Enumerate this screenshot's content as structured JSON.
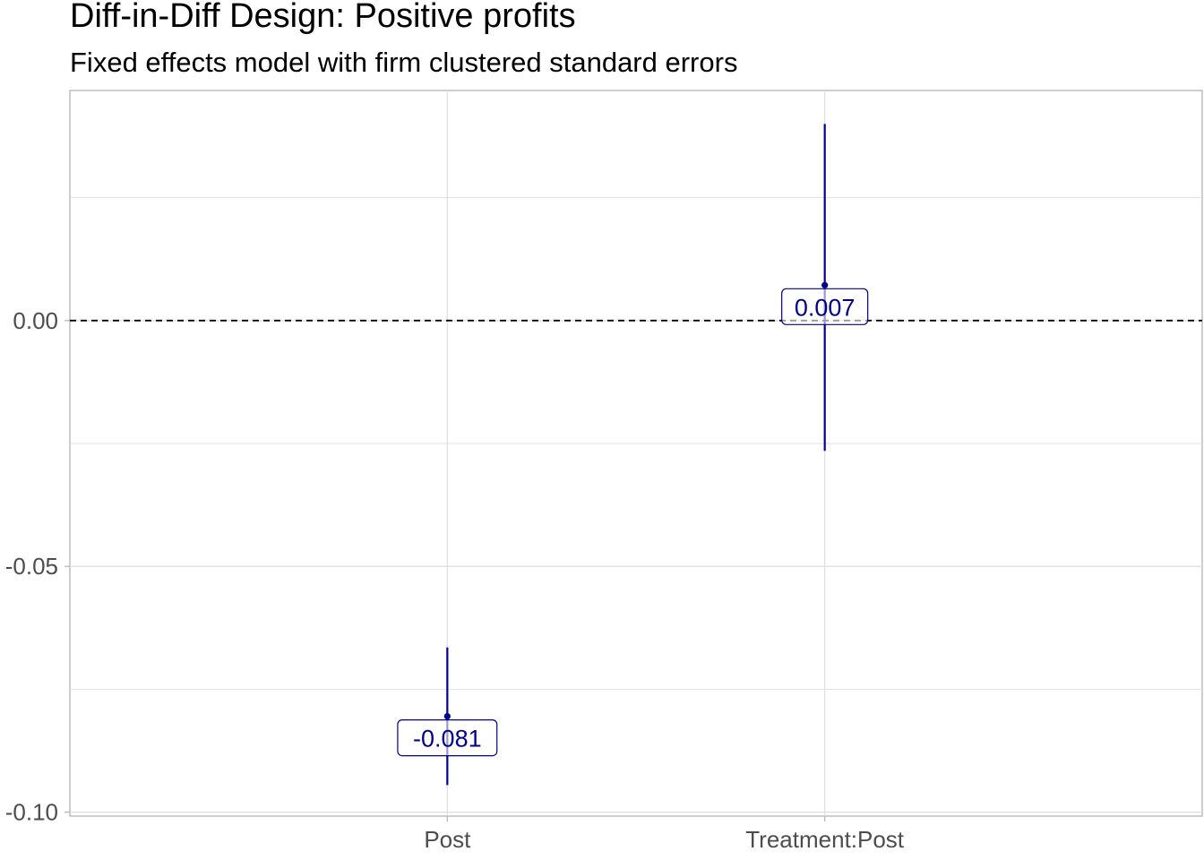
{
  "chart_data": {
    "type": "scatter",
    "title": "Diff-in-Diff Design: Positive profits",
    "subtitle": "Fixed effects model with firm clustered standard errors",
    "xlabel": "",
    "ylabel": "",
    "categories": [
      "Post",
      "Treatment:Post"
    ],
    "points": [
      {
        "term": "Post",
        "estimate": -0.0805,
        "conf_low": -0.0945,
        "conf_high": -0.0665,
        "label": "-0.081"
      },
      {
        "term": "Treatment:Post",
        "estimate": 0.0072,
        "conf_low": -0.0265,
        "conf_high": 0.04,
        "label": "0.007"
      }
    ],
    "yticks": [
      0.0,
      -0.05,
      -0.1
    ],
    "ytick_labels": [
      "0.00",
      "-0.05",
      "-0.10"
    ],
    "y_minor_breaks": [
      0.025,
      -0.025,
      -0.075
    ],
    "ylim": [
      -0.1008,
      0.0468
    ],
    "reference_line": {
      "y": 0,
      "style": "dashed",
      "color": "#000000"
    },
    "colors": {
      "series": "#00008b",
      "grid": "#dedede",
      "axis": "#b3b3b3",
      "tick_text": "#4d4d4d"
    },
    "grid": true,
    "legend": "none"
  }
}
